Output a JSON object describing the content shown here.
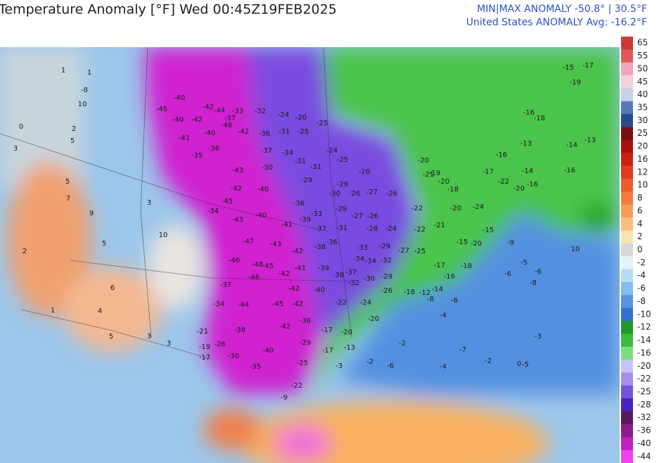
{
  "header": {
    "title": "Temperature Anomaly [°F]  Wed 00:45Z19FEB2025",
    "minmax": "MIN|MAX ANOMALY -50.8° | 30.5°F",
    "average": "United States ANOMALY Avg: -16.2°F"
  },
  "colorbar": {
    "ticks": [
      65,
      55,
      50,
      45,
      40,
      35,
      30,
      25,
      20,
      16,
      12,
      10,
      8,
      6,
      4,
      2,
      0,
      -2,
      -4,
      -6,
      -8,
      -10,
      -12,
      -14,
      -16,
      -20,
      -22,
      -25,
      -28,
      -32,
      -36,
      -40,
      -44
    ],
    "colors": [
      "#cc3a3a",
      "#de5a5a",
      "#f2a6bc",
      "#f4cede",
      "#c8d0e8",
      "#5878b8",
      "#2a4a8c",
      "#7a1010",
      "#a81010",
      "#cc2010",
      "#de3c1c",
      "#ee5c2c",
      "#f67c3c",
      "#f89c58",
      "#f8c080",
      "#f8e4b0",
      "#d8d8d8",
      "#e2f4fa",
      "#b4dcf2",
      "#84bcea",
      "#5894e0",
      "#3470d0",
      "#1e9a2a",
      "#3cbc3c",
      "#7ede7e",
      "#c4c4f4",
      "#a490ea",
      "#7454da",
      "#4424be",
      "#5a1a5a",
      "#8a1c8c",
      "#c020c0",
      "#f040f0"
    ]
  },
  "map_labels": [
    -40,
    -45,
    -42,
    -44,
    -33,
    -32,
    -24,
    -20,
    -25,
    -40,
    -42,
    -37,
    -41,
    -40,
    -48,
    -42,
    -36,
    -31,
    -25,
    -35,
    -36,
    -37,
    -34,
    -31,
    -31,
    -24,
    -25,
    -26,
    -43,
    -30,
    -29,
    -42,
    -40,
    -30,
    -29,
    -26,
    -27,
    -26,
    -34,
    -45,
    -36,
    -33,
    -29,
    -27,
    -26,
    -43,
    -40,
    -41,
    -39,
    -37,
    -31,
    -28,
    -24,
    -47,
    -43,
    -42,
    -38,
    -36,
    -33,
    -29,
    -27,
    -25,
    -46,
    -48,
    -45,
    -42,
    -41,
    -39,
    -38,
    -37,
    -34,
    -34,
    -32,
    -46,
    -42,
    -40,
    -32,
    -30,
    -29,
    -26,
    -37,
    -44,
    -45,
    -42,
    -22,
    -24,
    -20,
    -34,
    -38,
    -42,
    -36,
    -29,
    -17,
    -20,
    -30,
    -40,
    -35,
    -25,
    -22,
    -17,
    -13,
    -21,
    -19,
    -17,
    -26,
    1,
    -8,
    10,
    2,
    5,
    1,
    0,
    3,
    5,
    7,
    9,
    10,
    5,
    3,
    2,
    6,
    4,
    5,
    3,
    3,
    1,
    -15,
    -17,
    -19,
    -16,
    -18,
    -13,
    -16,
    -17,
    -14,
    -16,
    -20,
    -22,
    -24,
    -20,
    -18,
    -19,
    -20,
    -21,
    -20,
    -22,
    -21,
    -22,
    -15,
    -9,
    -5,
    -8,
    -6,
    -6,
    -3,
    -5,
    -7,
    -4,
    -6,
    -2,
    -3,
    -2,
    -4,
    -2,
    0,
    -6,
    -9,
    -12,
    -14,
    -16,
    -17,
    -18,
    -8,
    -18,
    -20,
    -15,
    10,
    -16,
    -14,
    -13
  ]
}
